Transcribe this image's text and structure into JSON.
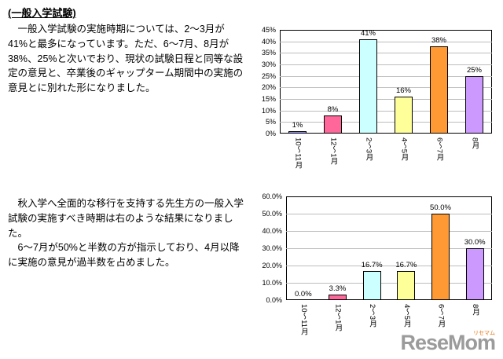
{
  "page": {
    "heading": "(一般入学試験)",
    "paragraph1": "　一般入学試験の実施時期については、2～3月が41%と最多になっています。ただ、6～7月、8月が38%、25%と次いでおり、現状の試験日程と同等な設定の意見と、卒業後のギャップターム期間中の実施の意見とに別れた形になりました。",
    "paragraph2": "　秋入学へ全面的な移行を支持する先生方の一般入学試験の実施すべき時期は右のような結果になりました。\n　6～7月が50%と半数の方が指示しており、4月以降に実施の意見が過半数を占めました。",
    "logo": {
      "text": "ReseMom",
      "sub": "リセマム"
    }
  },
  "chart_data": [
    {
      "type": "bar",
      "title": "",
      "xlabel": "",
      "ylabel": "",
      "categories": [
        "10～11月",
        "12～1月",
        "2～3月",
        "4～5月",
        "6～7月",
        "8月"
      ],
      "values": [
        1,
        8,
        41,
        16,
        38,
        25
      ],
      "labels": [
        "1%",
        "8%",
        "41%",
        "16%",
        "38%",
        "25%"
      ],
      "ylim": [
        0,
        45
      ],
      "ytick_step": 5,
      "ytick_labels": [
        "0%",
        "5%",
        "10%",
        "15%",
        "20%",
        "25%",
        "30%",
        "35%",
        "40%",
        "45%"
      ],
      "bar_colors": [
        "#9999ff",
        "#ff6699",
        "#ccffff",
        "#ffff99",
        "#ff9933",
        "#cc99ff"
      ],
      "grid": true,
      "legend": "none"
    },
    {
      "type": "bar",
      "title": "",
      "xlabel": "",
      "ylabel": "",
      "categories": [
        "10～11月",
        "12～1月",
        "2～3月",
        "4～5月",
        "6～7月",
        "8月"
      ],
      "values": [
        0.0,
        3.3,
        16.7,
        16.7,
        50.0,
        30.0
      ],
      "labels": [
        "0.0%",
        "3.3%",
        "16.7%",
        "16.7%",
        "50.0%",
        "30.0%"
      ],
      "ylim": [
        0,
        60
      ],
      "ytick_step": 10,
      "ytick_labels": [
        "0.0%",
        "10.0%",
        "20.0%",
        "30.0%",
        "40.0%",
        "50.0%",
        "60.0%"
      ],
      "bar_colors": [
        "#9999ff",
        "#ff6699",
        "#ccffff",
        "#ffff99",
        "#ff9933",
        "#cc99ff"
      ],
      "grid": true,
      "legend": "none"
    }
  ]
}
